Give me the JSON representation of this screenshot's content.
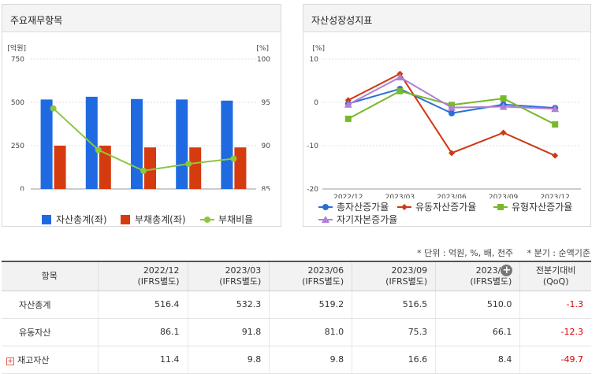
{
  "left_panel": {
    "title": "주요재무항목",
    "legend": [
      {
        "label": "자산총계(좌)",
        "color": "#1f6ae0",
        "shape": "square"
      },
      {
        "label": "부채총계(좌)",
        "color": "#d63b0f",
        "shape": "square"
      },
      {
        "label": "부채비율",
        "color": "#8dc63f",
        "shape": "line-dot"
      }
    ]
  },
  "right_panel": {
    "title": "자산성장성지표",
    "legend": [
      {
        "label": "총자산증가율",
        "color": "#2a6fd4",
        "shape": "line-dot"
      },
      {
        "label": "유동자산증가율",
        "color": "#cc3a13",
        "shape": "line-diamond"
      },
      {
        "label": "유형자산증가율",
        "color": "#78b82a",
        "shape": "line-square"
      },
      {
        "label": "자기자본증가율",
        "color": "#b07fd6",
        "shape": "line-triangle"
      }
    ]
  },
  "chart_data": [
    {
      "type": "bar",
      "categories": [
        "2022/12",
        "2023/03",
        "2023/06",
        "2023/09",
        "2023/12"
      ],
      "y_unit_left": "[억원]",
      "y_unit_right": "[%]",
      "ylim_left": [
        0,
        750
      ],
      "yticks_left": [
        "0",
        "250",
        "500",
        "750"
      ],
      "ylim_right": [
        85,
        100
      ],
      "yticks_right": [
        "85",
        "90",
        "95",
        "100"
      ],
      "series": [
        {
          "name": "자산총계(좌)",
          "type": "bar",
          "axis": "left",
          "color": "#1f6ae0",
          "values": [
            516.4,
            532.3,
            519.2,
            516.5,
            510.0
          ]
        },
        {
          "name": "부채총계(좌)",
          "type": "bar",
          "axis": "left",
          "color": "#d63b0f",
          "values": [
            250,
            250,
            240,
            240,
            240
          ]
        },
        {
          "name": "부채비율",
          "type": "line",
          "axis": "right",
          "color": "#8dc63f",
          "values": [
            94.3,
            89.5,
            87.1,
            87.9,
            88.5
          ]
        }
      ],
      "grid": true
    },
    {
      "type": "line",
      "categories": [
        "2022/12",
        "2023/03",
        "2023/06",
        "2023/09",
        "2023/12"
      ],
      "y_unit_right": "[%]",
      "ylim": [
        -20,
        10
      ],
      "yticks": [
        "-20",
        "-10",
        "0",
        "10"
      ],
      "series": [
        {
          "name": "총자산증가율",
          "color": "#2a6fd4",
          "marker": "circle",
          "values": [
            -0.3,
            3.1,
            -2.5,
            -0.5,
            -1.3
          ]
        },
        {
          "name": "유동자산증가율",
          "color": "#cc3a13",
          "marker": "diamond",
          "values": [
            0.5,
            6.6,
            -11.7,
            -7.0,
            -12.3
          ]
        },
        {
          "name": "유형자산증가율",
          "color": "#78b82a",
          "marker": "square",
          "values": [
            -3.8,
            2.6,
            -0.6,
            0.9,
            -5.1
          ]
        },
        {
          "name": "자기자본증가율",
          "color": "#b07fd6",
          "marker": "triangle",
          "values": [
            -0.5,
            5.8,
            -1.2,
            -1.0,
            -1.5
          ]
        }
      ],
      "grid": true
    }
  ],
  "notes": {
    "unit": "* 단위 : 억원, %, 배, 천주",
    "period": "* 분기 : 순액기준"
  },
  "table": {
    "item_header": "항목",
    "columns": [
      {
        "period": "2022/12",
        "basis": "(IFRS별도)"
      },
      {
        "period": "2023/03",
        "basis": "(IFRS별도)"
      },
      {
        "period": "2023/06",
        "basis": "(IFRS별도)"
      },
      {
        "period": "2023/09",
        "basis": "(IFRS별도)"
      },
      {
        "period": "2023/12",
        "basis": "(IFRS별도)"
      }
    ],
    "qoq_header": "전분기대비",
    "qoq_sub": "(QoQ)",
    "rows": [
      {
        "label": "자산총계",
        "values": [
          "516.4",
          "532.3",
          "519.2",
          "516.5",
          "510.0"
        ],
        "qoq": "-1.3"
      },
      {
        "label": "유동자산",
        "values": [
          "86.1",
          "91.8",
          "81.0",
          "75.3",
          "66.1"
        ],
        "qoq": "-12.3"
      },
      {
        "label": "재고자산",
        "values": [
          "11.4",
          "9.8",
          "9.8",
          "16.6",
          "8.4"
        ],
        "qoq": "-49.7",
        "expandable": true
      }
    ]
  }
}
